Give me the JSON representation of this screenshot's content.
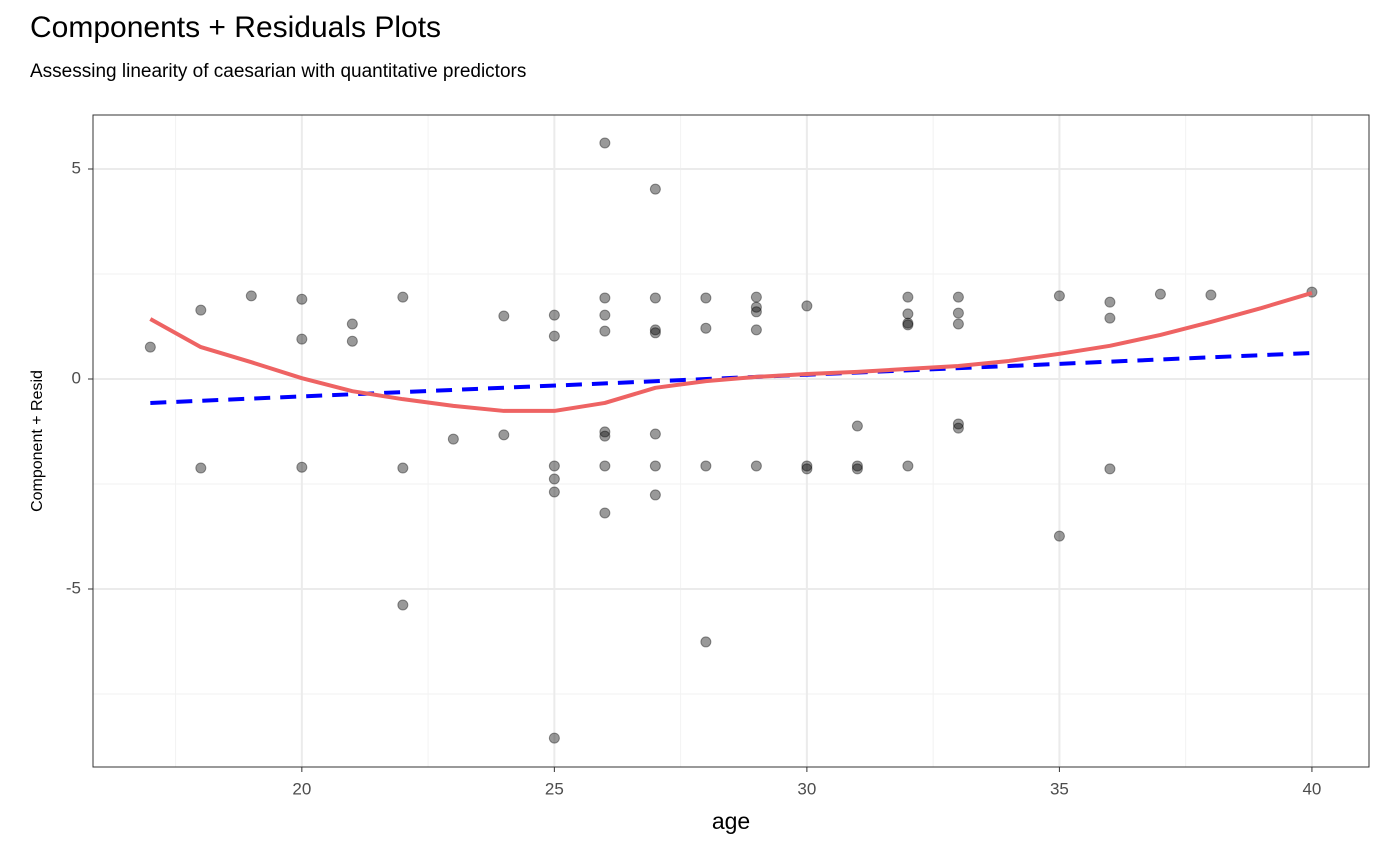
{
  "chart_data": {
    "type": "scatter",
    "title": "Components + Residuals Plots",
    "subtitle": "Assessing linearity of caesarian with quantitative predictors",
    "x_label": "age",
    "y_label": "Component + Resid",
    "xlim": [
      15.865,
      41.13
    ],
    "ylim": [
      -9.238,
      6.286
    ],
    "xticks": [
      20,
      25,
      30,
      35,
      40
    ],
    "yticks": [
      -5,
      0,
      5
    ],
    "xminor": [
      17.5,
      22.5,
      27.5,
      32.5,
      37.5
    ],
    "yminor": [
      -7.5,
      -2.5,
      2.5
    ],
    "grid": true,
    "series": [
      {
        "type": "scatter",
        "color": "#000000",
        "opacity": 0.4,
        "x": [
          17,
          18,
          18,
          19,
          20,
          20,
          20,
          21,
          21,
          22,
          22,
          22,
          23,
          24,
          24,
          25,
          25,
          25,
          25,
          25,
          25,
          26,
          26,
          26,
          26,
          26,
          26,
          26,
          26,
          27,
          27,
          27,
          27,
          27,
          27,
          27,
          28,
          28,
          28,
          28,
          29,
          29,
          29,
          29,
          29,
          30,
          30,
          30,
          31,
          31,
          31,
          32,
          32,
          32,
          32,
          32,
          33,
          33,
          33,
          33,
          33,
          35,
          35,
          36,
          36,
          36,
          37,
          38,
          40
        ],
        "values": [
          0.76,
          1.64,
          -2.12,
          1.98,
          1.9,
          0.95,
          -2.1,
          1.31,
          0.9,
          1.95,
          -2.12,
          -5.38,
          -1.43,
          1.5,
          -1.33,
          1.52,
          1.02,
          -2.07,
          -2.38,
          -2.69,
          -8.55,
          5.62,
          1.93,
          1.52,
          1.14,
          -1.26,
          -1.36,
          -2.07,
          -3.19,
          4.52,
          1.93,
          1.17,
          1.1,
          -1.31,
          -2.07,
          -2.76,
          1.93,
          1.21,
          -2.07,
          -6.26,
          1.95,
          1.71,
          1.6,
          1.17,
          -2.07,
          1.74,
          -2.07,
          -2.14,
          -1.12,
          -2.07,
          -2.14,
          1.95,
          1.55,
          1.33,
          1.29,
          -2.07,
          1.95,
          1.57,
          1.31,
          -1.07,
          -1.17,
          1.98,
          -3.74,
          1.83,
          1.45,
          -2.14,
          2.02,
          2.0,
          2.07
        ]
      },
      {
        "type": "line",
        "color": "#0000ff",
        "dash": true,
        "x": [
          17,
          40
        ],
        "values": [
          -0.57,
          0.62
        ]
      },
      {
        "type": "line",
        "color": "#ee6363",
        "dash": false,
        "x": [
          17,
          18,
          19,
          20,
          21,
          22,
          23,
          24,
          25,
          26,
          27,
          28,
          29,
          30,
          31,
          32,
          33,
          34,
          35,
          36,
          37,
          38,
          39,
          40
        ],
        "values": [
          1.43,
          0.76,
          0.4,
          0.02,
          -0.29,
          -0.48,
          -0.64,
          -0.76,
          -0.76,
          -0.57,
          -0.21,
          -0.05,
          0.05,
          0.12,
          0.17,
          0.24,
          0.31,
          0.43,
          0.6,
          0.79,
          1.05,
          1.36,
          1.69,
          2.05
        ]
      }
    ]
  }
}
